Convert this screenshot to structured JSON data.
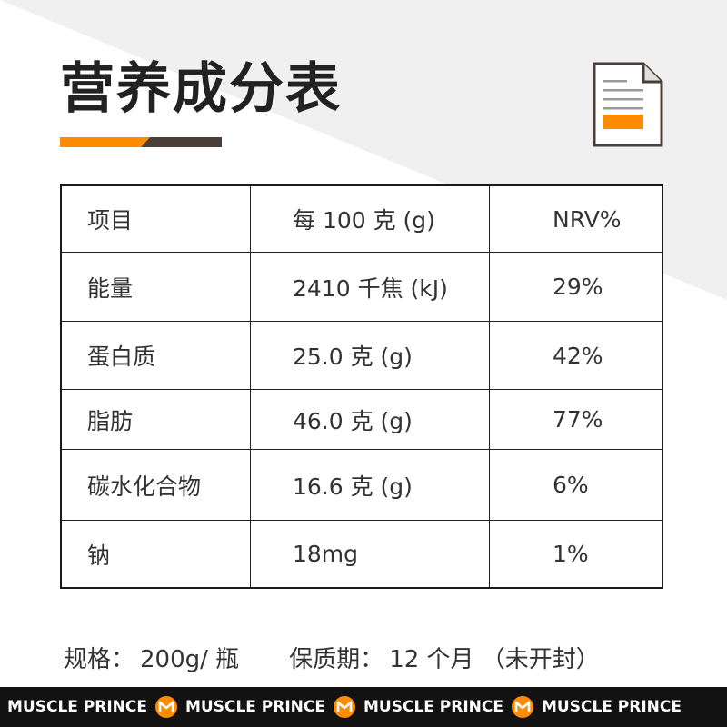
{
  "title": "营养成分表",
  "colors": {
    "accent": "#ff8c00",
    "dark_brown": "#4a3e39",
    "footer_bg": "#121212"
  },
  "icons": {
    "document": "document-icon",
    "brand_logo": "m-logo-icon"
  },
  "table": {
    "headers": [
      "项目",
      "每 100 克 (g)",
      "NRV%"
    ],
    "rows": [
      [
        "能量",
        "2410 千焦 (kJ)",
        "29%"
      ],
      [
        "蛋白质",
        "25.0 克 (g)",
        "42%"
      ],
      [
        "脂肪",
        "46.0 克 (g)",
        "77%"
      ],
      [
        "碳水化合物",
        "16.6 克 (g)",
        "6%"
      ],
      [
        "钠",
        "18mg",
        "1%"
      ]
    ]
  },
  "spec": {
    "label": "规格：",
    "value": "200g/ 瓶",
    "shelf_label": "保质期：",
    "shelf_value": "12 个月 （未开封）"
  },
  "footer": {
    "brand": [
      "MUSCLE PRINCE",
      "MUSCLE PRINCE",
      "MUSCLE PRINCE",
      "MUSCLE PRINCE"
    ]
  }
}
